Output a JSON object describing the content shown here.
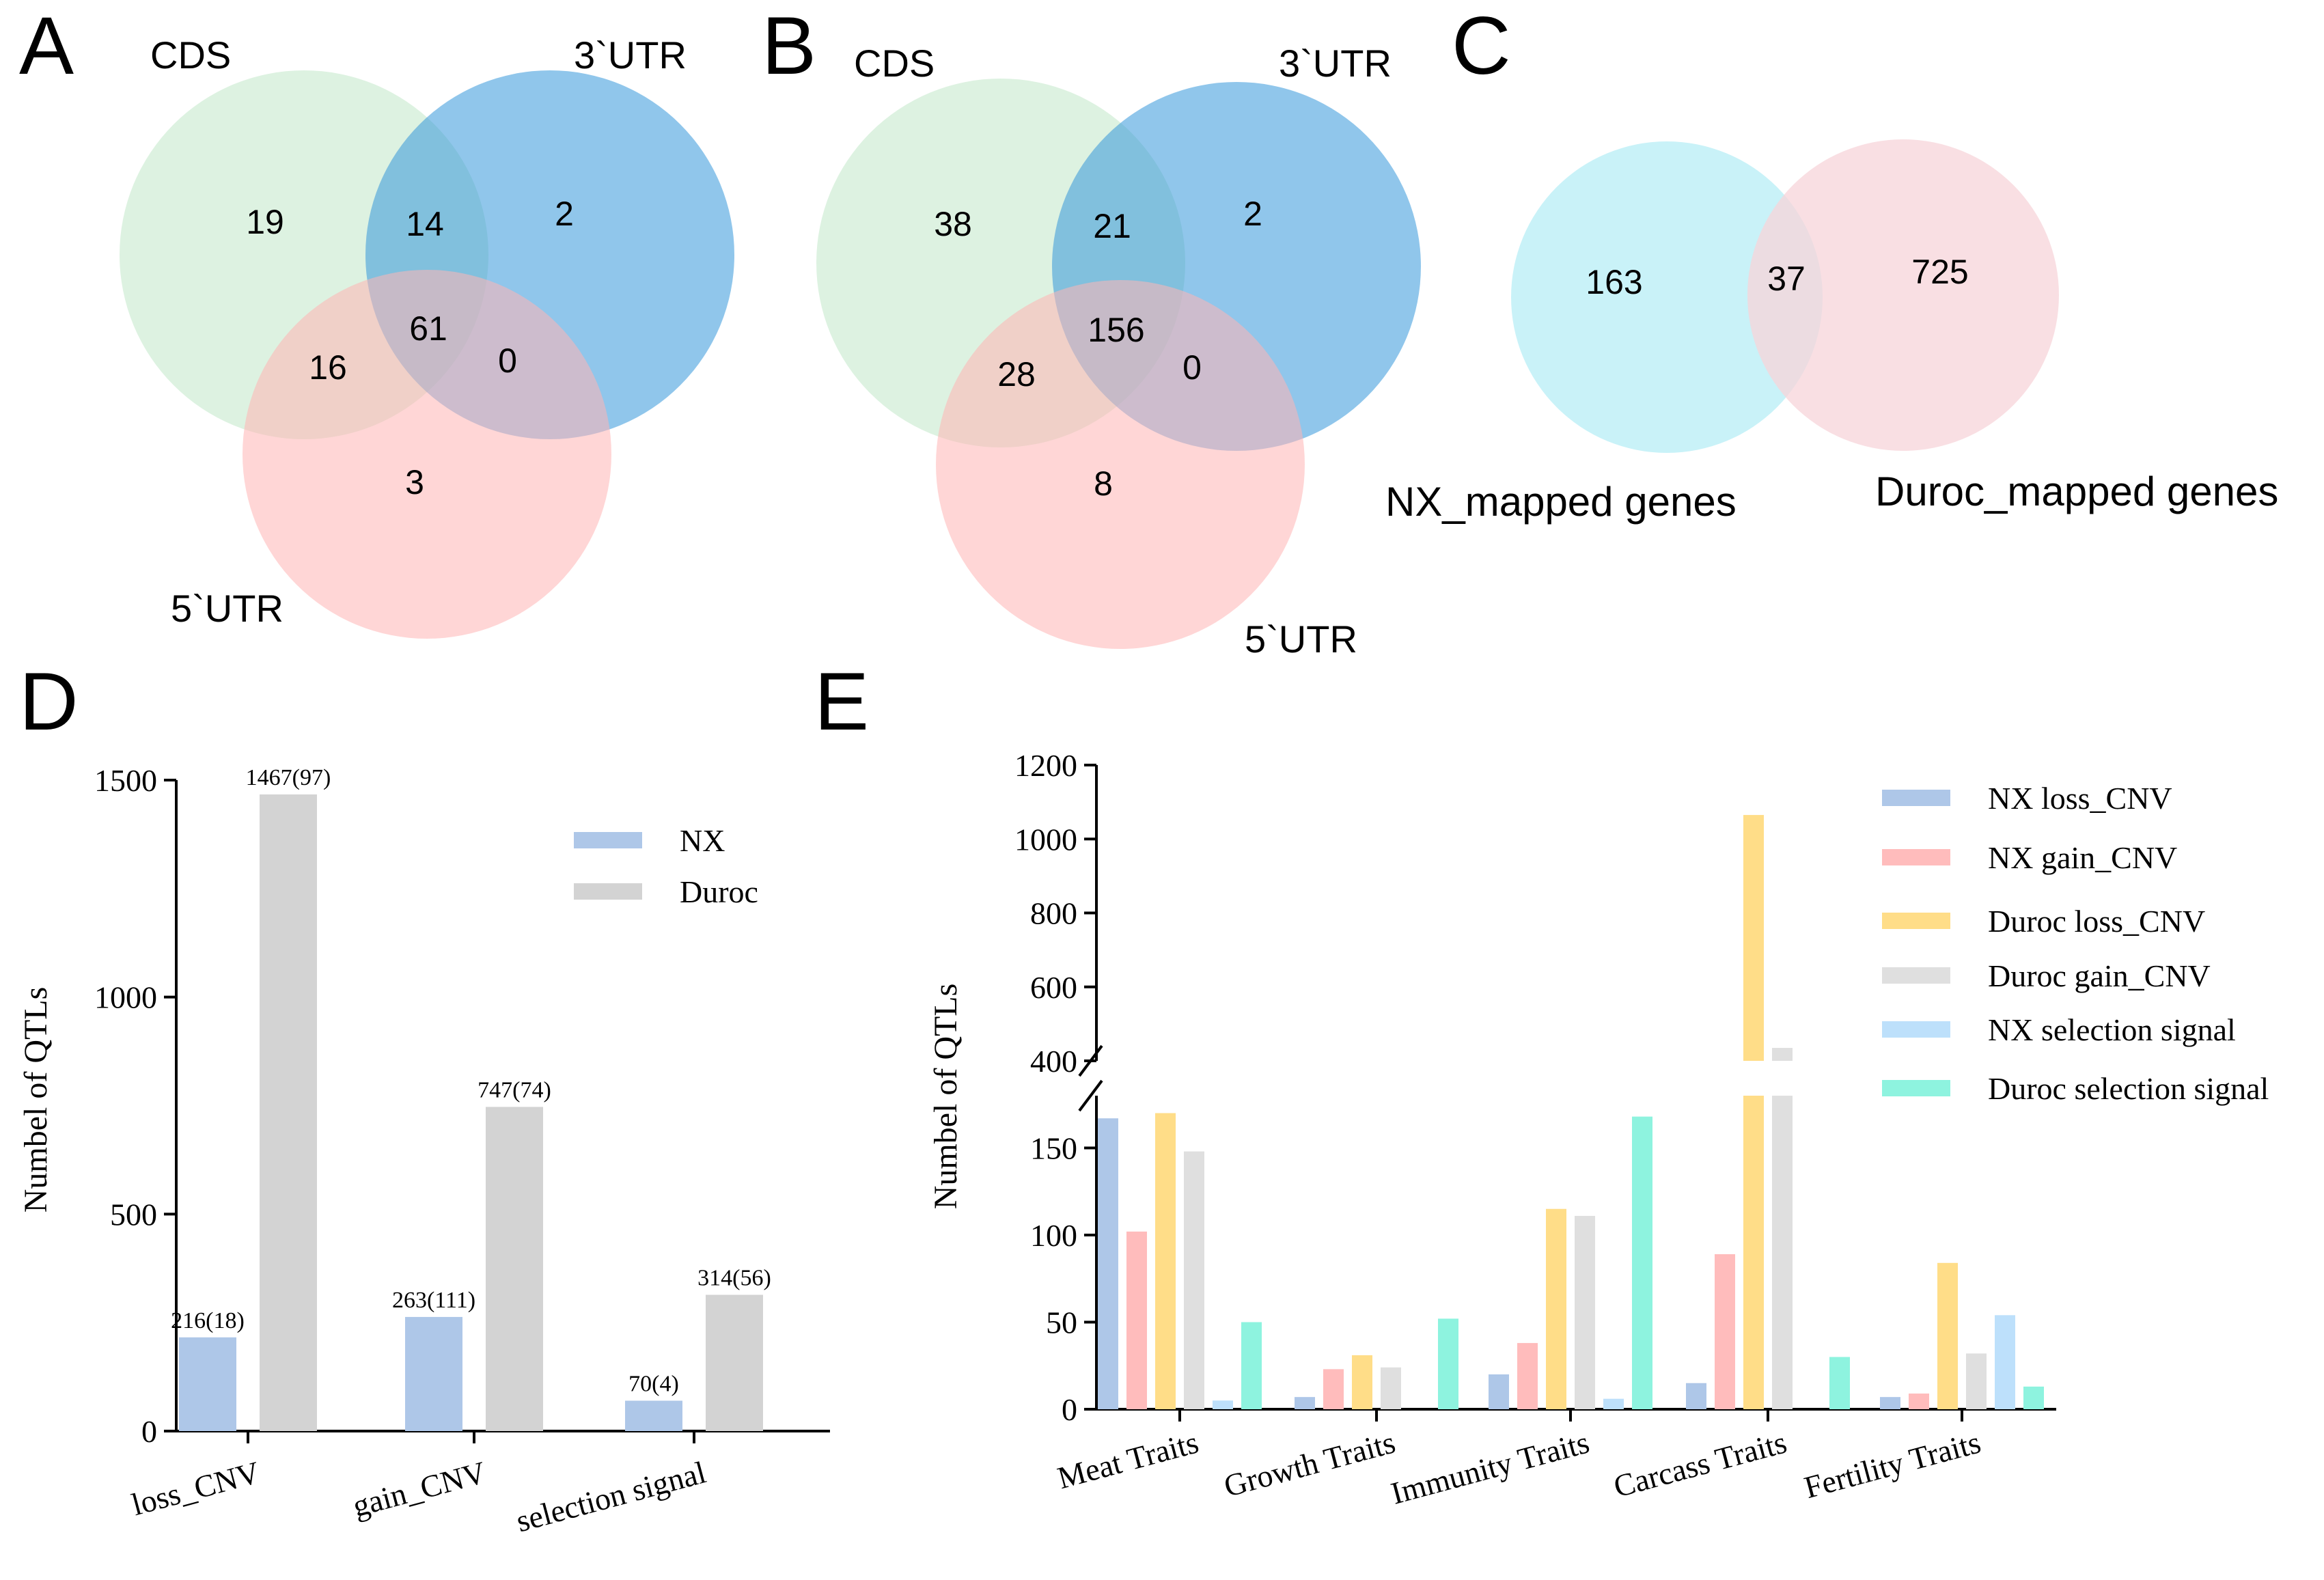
{
  "panels": {
    "A": {
      "letter": "A",
      "sets": [
        {
          "name": "CDS",
          "color": "#d7f0dc"
        },
        {
          "name": "3`UTR",
          "color": "#3498db"
        },
        {
          "name": "5`UTR",
          "color": "#ffb4b4"
        }
      ],
      "regions": {
        "cds_only": "19",
        "cds_3utr": "14",
        "utr3_only": "2",
        "cds_5utr": "16",
        "all": "61",
        "utr3_5utr": "0",
        "utr5_only": "3"
      }
    },
    "B": {
      "letter": "B",
      "sets": [
        {
          "name": "CDS",
          "color": "#d7f0dc"
        },
        {
          "name": "3`UTR",
          "color": "#3498db"
        },
        {
          "name": "5`UTR",
          "color": "#ffb4b4"
        }
      ],
      "regions": {
        "cds_only": "38",
        "cds_3utr": "21",
        "utr3_only": "2",
        "cds_5utr": "28",
        "all": "156",
        "utr3_5utr": "0",
        "utr5_only": "8"
      }
    },
    "C": {
      "letter": "C",
      "sets": [
        {
          "name": "NX_mapped genes",
          "color": "#bff0f7"
        },
        {
          "name": "Duroc_mapped genes",
          "color": "#f7d4d9"
        }
      ],
      "regions": {
        "left_only": "163",
        "both": "37",
        "right_only": "725"
      }
    },
    "D": {
      "letter": "D"
    },
    "E": {
      "letter": "E"
    }
  },
  "chart_data": [
    {
      "panel": "D",
      "type": "bar",
      "title": "",
      "xlabel": "",
      "ylabel": "Numbel of QTLs",
      "ylim": [
        0,
        1500
      ],
      "yticks": [
        0,
        500,
        1000,
        1500
      ],
      "categories": [
        "loss_CNV",
        "gain_CNV",
        "selection signal"
      ],
      "legend_position": "top-right",
      "series": [
        {
          "name": "NX",
          "color": "#aec7e8",
          "values": [
            216,
            263,
            70
          ],
          "labels": [
            "216(18)",
            "263(111)",
            "70(4)"
          ]
        },
        {
          "name": "Duroc",
          "color": "#d3d3d3",
          "values": [
            1467,
            747,
            314
          ],
          "labels": [
            "1467(97)",
            "747(74)",
            "314(56)"
          ]
        }
      ]
    },
    {
      "panel": "E",
      "type": "bar",
      "title": "",
      "xlabel": "",
      "ylabel": "Numbel of QTLs",
      "axis_break": [
        180,
        400
      ],
      "ylim_lower": [
        0,
        180
      ],
      "ylim_upper": [
        400,
        1200
      ],
      "yticks_lower": [
        0,
        50,
        100,
        150
      ],
      "yticks_upper": [
        400,
        600,
        800,
        1000,
        1200
      ],
      "categories": [
        "Meat Traits",
        "Growth Traits",
        "Immunity Traits",
        "Carcass Traits",
        "Fertility Traits"
      ],
      "legend_position": "top-right",
      "series": [
        {
          "name": "NX loss_CNV",
          "color": "#aec7e8",
          "values": [
            167,
            7,
            20,
            15,
            7
          ]
        },
        {
          "name": "NX gain_CNV",
          "color": "#ffbcbc",
          "values": [
            102,
            23,
            38,
            89,
            9
          ]
        },
        {
          "name": "Duroc loss_CNV",
          "color": "#ffdd88",
          "values": [
            170,
            31,
            115,
            1065,
            84
          ]
        },
        {
          "name": "Duroc gain_CNV",
          "color": "#dfdfdf",
          "values": [
            148,
            24,
            111,
            435,
            32
          ]
        },
        {
          "name": "NX selection signal",
          "color": "#bde0fb",
          "values": [
            5,
            0,
            6,
            0,
            54
          ]
        },
        {
          "name": "Duroc selection signal",
          "color": "#8ef3df",
          "values": [
            50,
            52,
            168,
            30,
            13
          ]
        }
      ]
    }
  ]
}
